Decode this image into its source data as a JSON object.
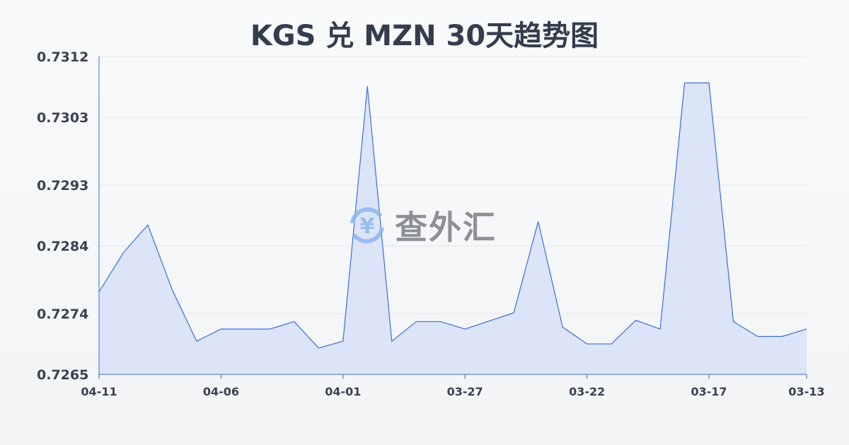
{
  "chart_data": {
    "type": "area",
    "title": "KGS 兑 MZN 30天趋势图",
    "x": [
      "04-11",
      "04-10",
      "04-09",
      "04-08",
      "04-07",
      "04-06",
      "04-05",
      "04-04",
      "04-03",
      "04-02",
      "04-01",
      "03-31",
      "03-30",
      "03-29",
      "03-28",
      "03-27",
      "03-26",
      "03-25",
      "03-24",
      "03-23",
      "03-22",
      "03-21",
      "03-20",
      "03-19",
      "03-18",
      "03-17",
      "03-16",
      "03-15",
      "03-14",
      "03-13"
    ],
    "values": [
      0.72772,
      0.7283,
      0.72871,
      0.72775,
      0.72699,
      0.72717,
      0.72717,
      0.72717,
      0.72728,
      0.72689,
      0.72699,
      0.73076,
      0.72699,
      0.72728,
      0.72728,
      0.72717,
      0.72729,
      0.72741,
      0.72876,
      0.7272,
      0.72695,
      0.72695,
      0.7273,
      0.72717,
      0.73081,
      0.73081,
      0.72728,
      0.72706,
      0.72706,
      0.72717
    ],
    "xticks": [
      "04-11",
      "04-06",
      "04-01",
      "03-27",
      "03-22",
      "03-17",
      "03-13"
    ],
    "yticks": [
      "0.7312",
      "0.7303",
      "0.7293",
      "0.7284",
      "0.7274",
      "0.7265"
    ],
    "ylim": [
      0.7265,
      0.7312
    ],
    "grid": true,
    "colors": {
      "line": "#3a6fd8",
      "fill": "#d6e2f7"
    }
  },
  "watermark": {
    "text": "查外汇",
    "icon": "yen-exchange-icon"
  }
}
